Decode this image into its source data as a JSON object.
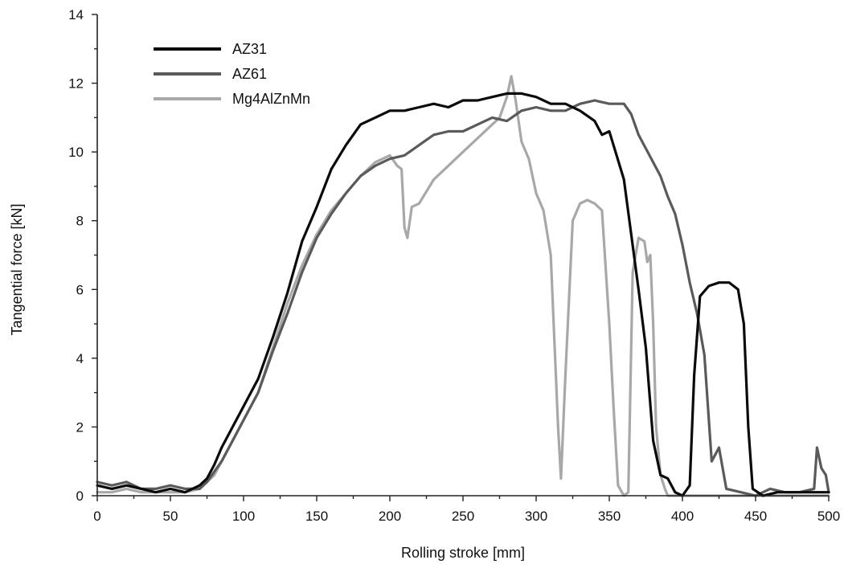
{
  "chart_data": {
    "type": "line",
    "title": "",
    "xlabel": "Rolling stroke [mm]",
    "ylabel": "Tangential force [kN]",
    "xlim": [
      0,
      500
    ],
    "ylim": [
      0,
      14
    ],
    "x_ticks": [
      0,
      50,
      100,
      150,
      200,
      250,
      300,
      350,
      400,
      450,
      500
    ],
    "y_ticks": [
      0,
      2,
      4,
      6,
      8,
      10,
      12,
      14
    ],
    "x_tick_labels": [
      "0",
      "50",
      "100",
      "150",
      "200",
      "250",
      "300",
      "350",
      "400",
      "450",
      "500"
    ],
    "y_tick_labels": [
      "0",
      "2",
      "4",
      "6",
      "8",
      "10",
      "12",
      "14"
    ],
    "grid": false,
    "legend_position": "top-left",
    "series": [
      {
        "name": "AZ31",
        "color": "#0a0a0a",
        "x": [
          0,
          10,
          20,
          30,
          40,
          50,
          60,
          70,
          75,
          80,
          85,
          90,
          95,
          100,
          110,
          120,
          130,
          140,
          150,
          160,
          170,
          180,
          190,
          200,
          210,
          220,
          230,
          240,
          250,
          260,
          270,
          280,
          290,
          300,
          310,
          320,
          330,
          340,
          345,
          350,
          355,
          360,
          365,
          370,
          375,
          380,
          385,
          390,
          395,
          400,
          405,
          408,
          412,
          418,
          425,
          432,
          438,
          442,
          445,
          448,
          455,
          465,
          480,
          500
        ],
        "y": [
          0.3,
          0.2,
          0.3,
          0.2,
          0.1,
          0.2,
          0.1,
          0.3,
          0.5,
          0.9,
          1.4,
          1.8,
          2.2,
          2.6,
          3.4,
          4.6,
          5.9,
          7.4,
          8.4,
          9.5,
          10.2,
          10.8,
          11.0,
          11.2,
          11.2,
          11.3,
          11.4,
          11.3,
          11.5,
          11.5,
          11.6,
          11.7,
          11.7,
          11.6,
          11.4,
          11.4,
          11.2,
          10.9,
          10.5,
          10.6,
          9.9,
          9.2,
          7.6,
          6.0,
          4.3,
          1.6,
          0.6,
          0.5,
          0.1,
          0.0,
          0.3,
          3.5,
          5.8,
          6.1,
          6.2,
          6.2,
          6.0,
          5.0,
          2.0,
          0.2,
          0.0,
          0.1,
          0.1,
          0.1
        ]
      },
      {
        "name": "AZ61",
        "color": "#5a5a5a",
        "x": [
          0,
          10,
          20,
          30,
          40,
          50,
          60,
          70,
          75,
          80,
          85,
          90,
          95,
          100,
          110,
          120,
          130,
          140,
          150,
          160,
          170,
          180,
          190,
          200,
          210,
          220,
          230,
          240,
          250,
          260,
          270,
          280,
          290,
          300,
          310,
          320,
          330,
          340,
          350,
          360,
          365,
          370,
          375,
          380,
          385,
          390,
          395,
          400,
          405,
          410,
          415,
          420,
          425,
          430,
          440,
          450,
          460,
          470,
          480,
          490,
          492,
          495,
          498,
          500
        ],
        "y": [
          0.4,
          0.3,
          0.4,
          0.2,
          0.2,
          0.3,
          0.2,
          0.2,
          0.4,
          0.7,
          1.0,
          1.4,
          1.8,
          2.2,
          3.0,
          4.2,
          5.3,
          6.5,
          7.5,
          8.2,
          8.8,
          9.3,
          9.6,
          9.8,
          9.9,
          10.2,
          10.5,
          10.6,
          10.6,
          10.8,
          11.0,
          10.9,
          11.2,
          11.3,
          11.2,
          11.2,
          11.4,
          11.5,
          11.4,
          11.4,
          11.1,
          10.5,
          10.1,
          9.7,
          9.3,
          8.7,
          8.2,
          7.3,
          6.2,
          5.3,
          4.1,
          1.0,
          1.4,
          0.2,
          0.1,
          0.0,
          0.2,
          0.1,
          0.1,
          0.2,
          1.4,
          0.8,
          0.6,
          0.1
        ]
      },
      {
        "name": "Mg4AlZnMn",
        "color": "#a8a8a8",
        "x": [
          0,
          10,
          20,
          30,
          40,
          50,
          60,
          70,
          75,
          80,
          85,
          90,
          95,
          100,
          110,
          120,
          130,
          140,
          150,
          160,
          170,
          180,
          190,
          200,
          205,
          208,
          210,
          212,
          215,
          220,
          230,
          240,
          250,
          260,
          270,
          275,
          280,
          283,
          286,
          290,
          295,
          300,
          305,
          310,
          312,
          315,
          317,
          320,
          325,
          330,
          335,
          340,
          345,
          350,
          353,
          356,
          360,
          363,
          366,
          370,
          374,
          376,
          378,
          380,
          382,
          385,
          388,
          390,
          400,
          420,
          450,
          480,
          500
        ],
        "y": [
          0.1,
          0.1,
          0.2,
          0.1,
          0.1,
          0.1,
          0.1,
          0.2,
          0.4,
          0.6,
          1.0,
          1.4,
          1.8,
          2.2,
          3.0,
          4.3,
          5.6,
          6.7,
          7.6,
          8.3,
          8.8,
          9.3,
          9.7,
          9.9,
          9.6,
          9.5,
          7.8,
          7.5,
          8.4,
          8.5,
          9.2,
          9.6,
          10.0,
          10.4,
          10.8,
          11.0,
          11.6,
          12.2,
          11.5,
          10.3,
          9.8,
          8.8,
          8.3,
          7.0,
          5.0,
          2.0,
          0.5,
          3.5,
          8.0,
          8.5,
          8.6,
          8.5,
          8.3,
          5.0,
          2.5,
          0.3,
          0.0,
          0.1,
          6.5,
          7.5,
          7.4,
          6.8,
          7.0,
          5.0,
          2.0,
          0.6,
          0.2,
          0.0,
          0.0,
          0.0,
          0.0,
          0.0,
          0.0
        ]
      }
    ]
  }
}
